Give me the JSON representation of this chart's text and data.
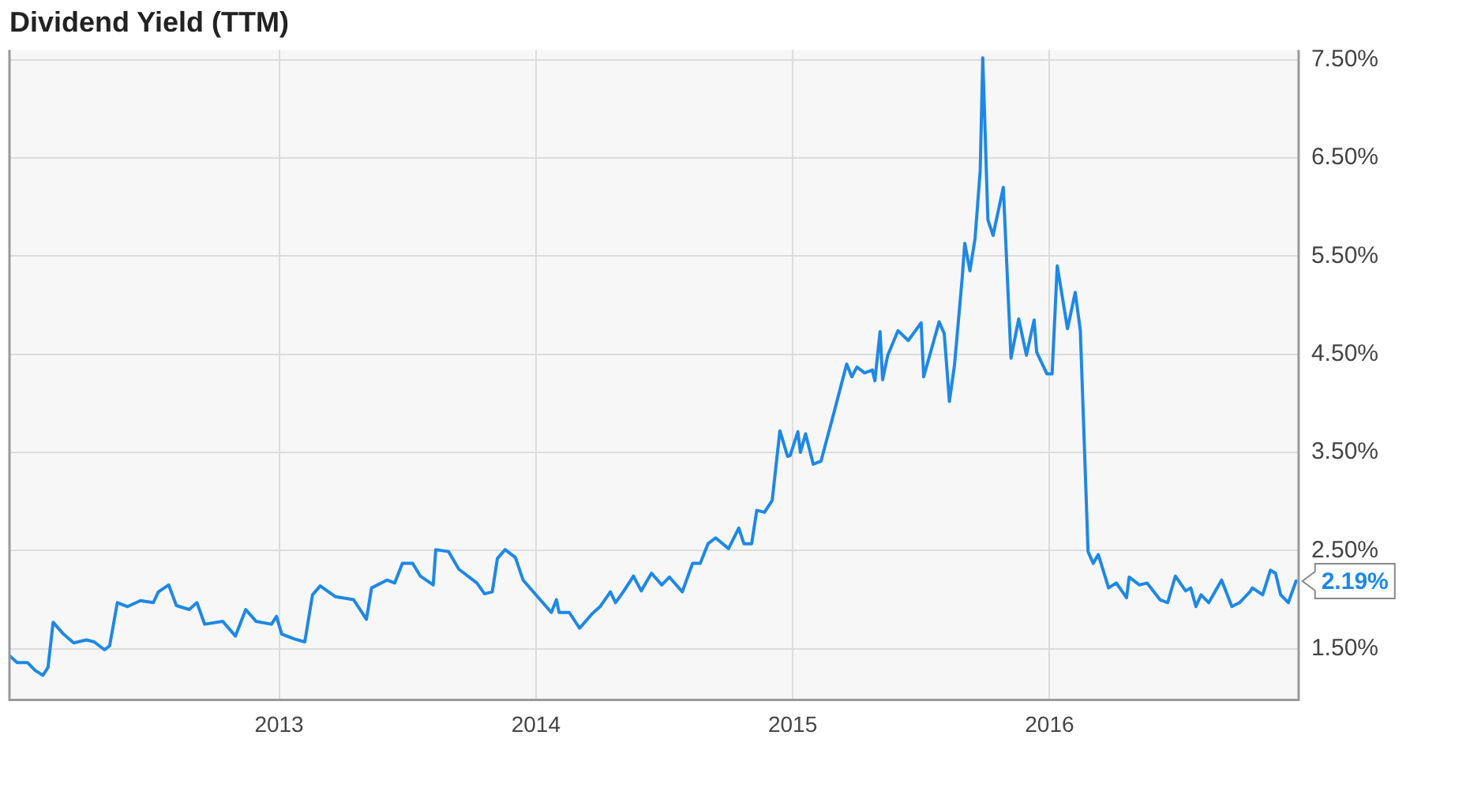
{
  "chart_data": {
    "type": "line",
    "title": "Dividend Yield (TTM)",
    "x": [
      2011.95,
      2011.98,
      2012.02,
      2012.05,
      2012.08,
      2012.1,
      2012.12,
      2012.16,
      2012.2,
      2012.25,
      2012.28,
      2012.32,
      2012.34,
      2012.37,
      2012.41,
      2012.46,
      2012.51,
      2012.53,
      2012.57,
      2012.6,
      2012.65,
      2012.68,
      2012.71,
      2012.78,
      2012.83,
      2012.87,
      2012.91,
      2012.97,
      2012.99,
      2013.01,
      2013.06,
      2013.1,
      2013.13,
      2013.16,
      2013.22,
      2013.29,
      2013.34,
      2013.36,
      2013.42,
      2013.45,
      2013.48,
      2013.52,
      2013.55,
      2013.6,
      2013.61,
      2013.66,
      2013.7,
      2013.77,
      2013.8,
      2013.83,
      2013.85,
      2013.88,
      2013.92,
      2013.95,
      2014.06,
      2014.08,
      2014.09,
      2014.13,
      2014.17,
      2014.22,
      2014.25,
      2014.29,
      2014.31,
      2014.34,
      2014.38,
      2014.41,
      2014.45,
      2014.49,
      2014.52,
      2014.57,
      2014.61,
      2014.64,
      2014.67,
      2014.7,
      2014.75,
      2014.79,
      2014.81,
      2014.84,
      2014.86,
      2014.89,
      2014.92,
      2014.95,
      2014.98,
      2014.99,
      2015.02,
      2015.03,
      2015.05,
      2015.08,
      2015.11,
      2015.16,
      2015.21,
      2015.23,
      2015.25,
      2015.28,
      2015.31,
      2015.32,
      2015.34,
      2015.35,
      2015.37,
      2015.41,
      2015.45,
      2015.5,
      2015.51,
      2015.57,
      2015.59,
      2015.61,
      2015.63,
      2015.66,
      2015.67,
      2015.69,
      2015.71,
      2015.73,
      2015.74,
      2015.76,
      2015.78,
      2015.82,
      2015.85,
      2015.88,
      2015.91,
      2015.94,
      2015.95,
      2015.99,
      2016.01,
      2016.03,
      2016.07,
      2016.1,
      2016.12,
      2016.15,
      2016.17,
      2016.19,
      2016.23,
      2016.26,
      2016.3,
      2016.31,
      2016.35,
      2016.38,
      2016.43,
      2016.46,
      2016.49,
      2016.53,
      2016.55,
      2016.57,
      2016.59,
      2016.62,
      2016.67,
      2016.71,
      2016.74,
      2016.78,
      2016.79,
      2016.83,
      2016.86,
      2016.88,
      2016.9,
      2016.93,
      2016.96
    ],
    "series": [
      {
        "color": "#1e88e5",
        "values": [
          1.43,
          1.36,
          1.36,
          1.28,
          1.23,
          1.31,
          1.77,
          1.65,
          1.56,
          1.59,
          1.57,
          1.49,
          1.53,
          1.97,
          1.93,
          1.99,
          1.97,
          2.08,
          2.15,
          1.94,
          1.9,
          1.97,
          1.75,
          1.78,
          1.63,
          1.9,
          1.78,
          1.75,
          1.83,
          1.65,
          1.6,
          1.57,
          2.05,
          2.14,
          2.03,
          2.0,
          1.8,
          2.12,
          2.2,
          2.17,
          2.37,
          2.37,
          2.24,
          2.15,
          2.51,
          2.49,
          2.31,
          2.17,
          2.06,
          2.08,
          2.42,
          2.51,
          2.43,
          2.2,
          1.87,
          2.0,
          1.87,
          1.87,
          1.71,
          1.86,
          1.93,
          2.08,
          1.97,
          2.08,
          2.24,
          2.09,
          2.27,
          2.15,
          2.23,
          2.08,
          2.37,
          2.37,
          2.57,
          2.63,
          2.52,
          2.73,
          2.57,
          2.57,
          2.91,
          2.89,
          3.01,
          3.72,
          3.46,
          3.47,
          3.71,
          3.5,
          3.69,
          3.38,
          3.41,
          3.9,
          4.4,
          4.27,
          4.37,
          4.31,
          4.34,
          4.23,
          4.73,
          4.24,
          4.49,
          4.74,
          4.64,
          4.82,
          4.27,
          4.83,
          4.71,
          4.02,
          4.39,
          5.28,
          5.63,
          5.35,
          5.68,
          6.37,
          7.52,
          5.87,
          5.71,
          6.2,
          4.46,
          4.86,
          4.49,
          4.85,
          4.52,
          4.3,
          4.3,
          5.4,
          4.76,
          5.13,
          4.74,
          2.49,
          2.37,
          2.46,
          2.12,
          2.17,
          2.02,
          2.23,
          2.15,
          2.17,
          2.0,
          1.97,
          2.24,
          2.09,
          2.12,
          1.93,
          2.05,
          1.97,
          2.2,
          1.93,
          1.97,
          2.08,
          2.12,
          2.05,
          2.3,
          2.27,
          2.05,
          1.97,
          2.19
        ]
      }
    ],
    "xlim": [
      2011.95,
      2016.97
    ],
    "xticks": [
      2013,
      2014,
      2015,
      2016
    ],
    "ylim": [
      0.98,
      7.6
    ],
    "yticks": [
      {
        "value": 1.5,
        "label": "1.50%"
      },
      {
        "value": 2.5,
        "label": "2.50%"
      },
      {
        "value": 3.5,
        "label": "3.50%"
      },
      {
        "value": 4.5,
        "label": "4.50%"
      },
      {
        "value": 5.5,
        "label": "5.50%"
      },
      {
        "value": 6.5,
        "label": "6.50%"
      },
      {
        "value": 7.5,
        "label": "7.50%"
      }
    ],
    "grid": true,
    "marker": "none",
    "line_style": "solid",
    "annotations": [
      {
        "text": "2.19%",
        "x": 2016.96,
        "y": 2.19
      }
    ]
  }
}
